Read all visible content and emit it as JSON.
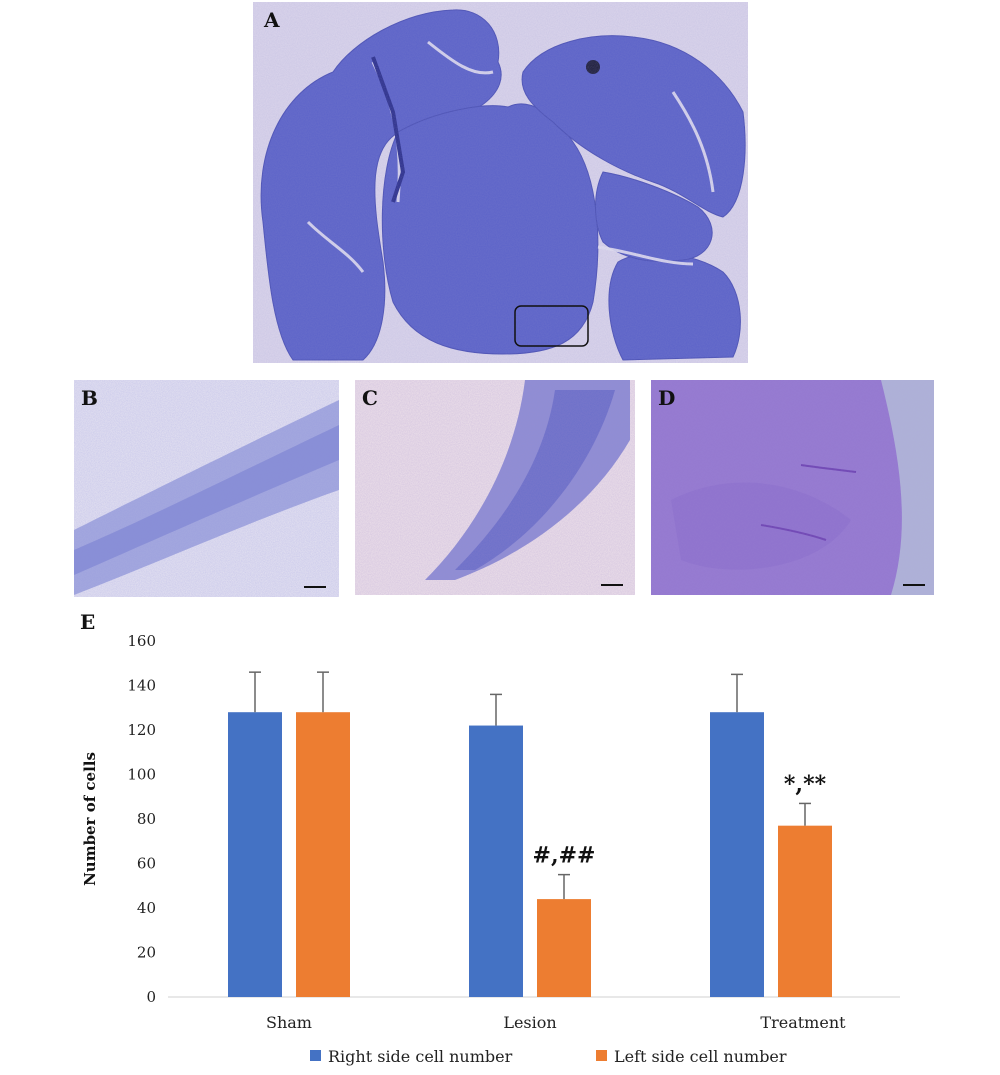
{
  "panels": {
    "a": {
      "label": "A"
    },
    "b": {
      "label": "B"
    },
    "c": {
      "label": "C"
    },
    "d": {
      "label": "D"
    },
    "e": {
      "label": "E"
    }
  },
  "colors": {
    "right_series": "#4472C4",
    "left_series": "#ED7D31",
    "stain_dark": "#5560C8",
    "stain_light": "#E8DDEE"
  },
  "chart_data": {
    "type": "bar",
    "categories": [
      "Sham",
      "Lesion",
      "Treatment"
    ],
    "series": [
      {
        "name": "Right side cell number",
        "values": [
          128,
          122,
          128
        ],
        "errors": [
          18,
          14,
          17
        ]
      },
      {
        "name": "Left side cell number",
        "values": [
          128,
          44,
          77
        ],
        "errors": [
          18,
          11,
          10
        ]
      }
    ],
    "annotations": [
      {
        "category": "Lesion",
        "series": "Left side cell number",
        "text": "#,##"
      },
      {
        "category": "Treatment",
        "series": "Left side cell number",
        "text": "*,**"
      }
    ],
    "title": "",
    "xlabel": "",
    "ylabel": "Number of cells",
    "ylim": [
      0,
      160
    ],
    "yticks": [
      0,
      20,
      40,
      60,
      80,
      100,
      120,
      140,
      160
    ],
    "grid": false,
    "legend_position": "bottom"
  }
}
